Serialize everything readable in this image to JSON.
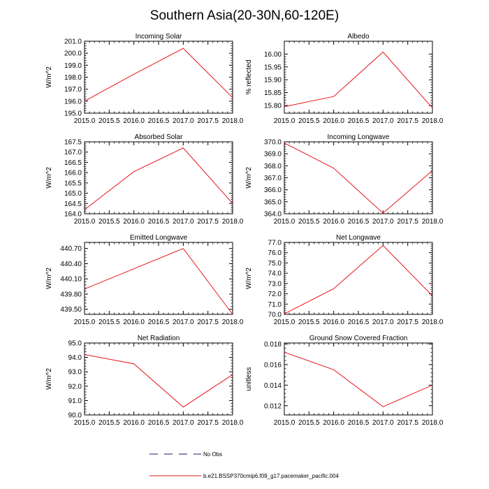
{
  "figure_title": "Southern Asia(20-30N,60-120E)",
  "legend": {
    "items": [
      {
        "label": "No Obs",
        "style": "dashed",
        "color": "#1a1a6e"
      },
      {
        "label": "b.e21.BSSP370cmip6.f09_g17.pacemaker_pacific.004",
        "style": "solid",
        "color": "#e8151b"
      }
    ]
  },
  "chart_data": [
    {
      "type": "line",
      "title": "Incoming Solar",
      "ylabel": "W/m^2",
      "x": [
        2015.0,
        2016.0,
        2017.0,
        2018.0
      ],
      "xlim": [
        2015.0,
        2018.0
      ],
      "xticks": [
        2015.0,
        2015.5,
        2016.0,
        2016.5,
        2017.0,
        2017.5,
        2018.0
      ],
      "xtick_labels": [
        "2015.0",
        "2015.5",
        "2016.0",
        "2016.5",
        "2017.0",
        "2017.5",
        "2018.0"
      ],
      "ylim": [
        195.0,
        201.0
      ],
      "yticks": [
        195.0,
        196.0,
        197.0,
        198.0,
        199.0,
        200.0,
        201.0
      ],
      "ytick_labels": [
        "195.0",
        "196.0",
        "197.0",
        "198.0",
        "199.0",
        "200.0",
        "201.0"
      ],
      "series": [
        {
          "name": "b.e21.BSSP370cmip6.f09_g17.pacemaker_pacific.004",
          "values": [
            196.0,
            198.25,
            200.4,
            196.3
          ]
        }
      ]
    },
    {
      "type": "line",
      "title": "Albedo",
      "ylabel": "% reflected",
      "x": [
        2015.0,
        2016.0,
        2017.0,
        2018.0
      ],
      "xlim": [
        2015.0,
        2018.0
      ],
      "xticks": [
        2015.0,
        2015.5,
        2016.0,
        2016.5,
        2017.0,
        2017.5,
        2018.0
      ],
      "xtick_labels": [
        "2015.0",
        "2015.5",
        "2016.0",
        "2016.5",
        "2017.0",
        "2017.5",
        "2018.0"
      ],
      "ylim": [
        15.77,
        16.05
      ],
      "yticks": [
        15.8,
        15.85,
        15.9,
        15.95,
        16.0
      ],
      "ytick_labels": [
        "15.80",
        "15.85",
        "15.90",
        "15.95",
        "16.00"
      ],
      "series": [
        {
          "name": "b.e21.BSSP370cmip6.f09_g17.pacemaker_pacific.004",
          "values": [
            15.795,
            15.835,
            16.008,
            15.79
          ]
        }
      ]
    },
    {
      "type": "line",
      "title": "Absorbed Solar",
      "ylabel": "W/m^2",
      "x": [
        2015.0,
        2016.0,
        2017.0,
        2018.0
      ],
      "xlim": [
        2015.0,
        2018.0
      ],
      "xticks": [
        2015.0,
        2015.5,
        2016.0,
        2016.5,
        2017.0,
        2017.5,
        2018.0
      ],
      "xtick_labels": [
        "2015.0",
        "2015.5",
        "2016.0",
        "2016.5",
        "2017.0",
        "2017.5",
        "2018.0"
      ],
      "ylim": [
        164.0,
        167.5
      ],
      "yticks": [
        164.0,
        164.5,
        165.0,
        165.5,
        166.0,
        166.5,
        167.0,
        167.5
      ],
      "ytick_labels": [
        "164.0",
        "164.5",
        "165.0",
        "165.5",
        "166.0",
        "166.5",
        "167.0",
        "167.5"
      ],
      "series": [
        {
          "name": "b.e21.BSSP370cmip6.f09_g17.pacemaker_pacific.004",
          "values": [
            164.2,
            166.05,
            167.2,
            164.5
          ]
        }
      ]
    },
    {
      "type": "line",
      "title": "Incoming Longwave",
      "ylabel": "W/m^2",
      "x": [
        2015.0,
        2016.0,
        2017.0,
        2018.0
      ],
      "xlim": [
        2015.0,
        2018.0
      ],
      "xticks": [
        2015.0,
        2015.5,
        2016.0,
        2016.5,
        2017.0,
        2017.5,
        2018.0
      ],
      "xtick_labels": [
        "2015.0",
        "2015.5",
        "2016.0",
        "2016.5",
        "2017.0",
        "2017.5",
        "2018.0"
      ],
      "ylim": [
        364.0,
        370.0
      ],
      "yticks": [
        364.0,
        365.0,
        366.0,
        367.0,
        368.0,
        369.0,
        370.0
      ],
      "ytick_labels": [
        "364.0",
        "365.0",
        "366.0",
        "367.0",
        "368.0",
        "369.0",
        "370.0"
      ],
      "series": [
        {
          "name": "b.e21.BSSP370cmip6.f09_g17.pacemaker_pacific.004",
          "values": [
            369.9,
            367.8,
            364.05,
            367.6
          ]
        }
      ]
    },
    {
      "type": "line",
      "title": "Emitted Longwave",
      "ylabel": "W/m^2",
      "x": [
        2015.0,
        2016.0,
        2017.0,
        2018.0
      ],
      "xlim": [
        2015.0,
        2018.0
      ],
      "xticks": [
        2015.0,
        2015.5,
        2016.0,
        2016.5,
        2017.0,
        2017.5,
        2018.0
      ],
      "xtick_labels": [
        "2015.0",
        "2015.5",
        "2016.0",
        "2016.5",
        "2017.0",
        "2017.5",
        "2018.0"
      ],
      "ylim": [
        439.4,
        440.82
      ],
      "yticks": [
        439.5,
        439.8,
        440.1,
        440.4,
        440.7
      ],
      "ytick_labels": [
        "439.50",
        "439.80",
        "440.10",
        "440.40",
        "440.70"
      ],
      "series": [
        {
          "name": "b.e21.BSSP370cmip6.f09_g17.pacemaker_pacific.004",
          "values": [
            439.9,
            440.3,
            440.7,
            439.4
          ]
        }
      ]
    },
    {
      "type": "line",
      "title": "Net Longwave",
      "ylabel": "W/m^2",
      "x": [
        2015.0,
        2016.0,
        2017.0,
        2018.0
      ],
      "xlim": [
        2015.0,
        2018.0
      ],
      "xticks": [
        2015.0,
        2015.5,
        2016.0,
        2016.5,
        2017.0,
        2017.5,
        2018.0
      ],
      "xtick_labels": [
        "2015.0",
        "2015.5",
        "2016.0",
        "2016.5",
        "2017.0",
        "2017.5",
        "2018.0"
      ],
      "ylim": [
        70.0,
        77.0
      ],
      "yticks": [
        70.0,
        71.0,
        72.0,
        73.0,
        74.0,
        75.0,
        76.0,
        77.0
      ],
      "ytick_labels": [
        "70.0",
        "71.0",
        "72.0",
        "73.0",
        "74.0",
        "75.0",
        "76.0",
        "77.0"
      ],
      "series": [
        {
          "name": "b.e21.BSSP370cmip6.f09_g17.pacemaker_pacific.004",
          "values": [
            70.05,
            72.5,
            76.7,
            71.8
          ]
        }
      ]
    },
    {
      "type": "line",
      "title": "Net Radiation",
      "ylabel": "W/m^2",
      "x": [
        2015.0,
        2016.0,
        2017.0,
        2018.0
      ],
      "xlim": [
        2015.0,
        2018.0
      ],
      "xticks": [
        2015.0,
        2015.5,
        2016.0,
        2016.5,
        2017.0,
        2017.5,
        2018.0
      ],
      "xtick_labels": [
        "2015.0",
        "2015.5",
        "2016.0",
        "2016.5",
        "2017.0",
        "2017.5",
        "2018.0"
      ],
      "ylim": [
        90.0,
        95.0
      ],
      "yticks": [
        90.0,
        91.0,
        92.0,
        93.0,
        94.0,
        95.0
      ],
      "ytick_labels": [
        "90.0",
        "91.0",
        "92.0",
        "93.0",
        "94.0",
        "95.0"
      ],
      "series": [
        {
          "name": "b.e21.BSSP370cmip6.f09_g17.pacemaker_pacific.004",
          "values": [
            94.2,
            93.55,
            90.55,
            92.8
          ]
        }
      ]
    },
    {
      "type": "line",
      "title": "Ground Snow Covered Fraction",
      "ylabel": "unitless",
      "x": [
        2015.0,
        2016.0,
        2017.0,
        2018.0
      ],
      "xlim": [
        2015.0,
        2018.0
      ],
      "xticks": [
        2015.0,
        2015.5,
        2016.0,
        2016.5,
        2017.0,
        2017.5,
        2018.0
      ],
      "xtick_labels": [
        "2015.0",
        "2015.5",
        "2016.0",
        "2016.5",
        "2017.0",
        "2017.5",
        "2018.0"
      ],
      "ylim": [
        0.0111,
        0.0181
      ],
      "yticks": [
        0.012,
        0.014,
        0.016,
        0.018
      ],
      "ytick_labels": [
        "0.012",
        "0.014",
        "0.016",
        "0.018"
      ],
      "series": [
        {
          "name": "b.e21.BSSP370cmip6.f09_g17.pacemaker_pacific.004",
          "values": [
            0.0172,
            0.0155,
            0.0119,
            0.014
          ]
        }
      ]
    }
  ]
}
